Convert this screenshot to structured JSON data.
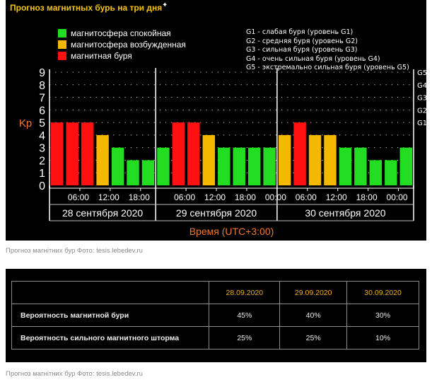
{
  "panel": {
    "title": "Прогноз магнитных бурь на три дня",
    "legend": [
      {
        "label": "магнитосфера спокойная",
        "color": "#22dd22"
      },
      {
        "label": "магнитосфера возбужденная",
        "color": "#f5b800"
      },
      {
        "label": "магнитная буря",
        "color": "#ff1111"
      }
    ],
    "g_legend": [
      "G1 - слабая буря (уровень G1)",
      "G2 - средняя буря (уровень G2)",
      "G3 - сильная буря (уровень G3)",
      "G4 - очень сильная буря (уровень G4)",
      "G5 - экстремально сильная буря (уровень G5)"
    ]
  },
  "chart_data": {
    "type": "bar",
    "ylabel": "Kp",
    "xlabel": "Время (UTC+3:00)",
    "ylim": [
      0,
      9
    ],
    "yticks": [
      "0",
      "1",
      "2",
      "3",
      "4",
      "5",
      "6",
      "7",
      "8",
      "9"
    ],
    "right_ticks": [
      {
        "label": "G1",
        "value": 5
      },
      {
        "label": "G2",
        "value": 6
      },
      {
        "label": "G3",
        "value": 7
      },
      {
        "label": "G4",
        "value": 8
      },
      {
        "label": "G5",
        "value": 9
      }
    ],
    "time_ticks": [
      "06:00",
      "12:00",
      "18:00",
      "00:00"
    ],
    "days": [
      "28 сентября 2020",
      "29 сентября 2020",
      "30 сентября 2020"
    ],
    "series": [
      {
        "day": "28 сентября 2020",
        "values": [
          5,
          5,
          5,
          4,
          3,
          2,
          2
        ]
      },
      {
        "day": "29 сентября 2020",
        "values": [
          3,
          5,
          5,
          4,
          3,
          3,
          3,
          3
        ]
      },
      {
        "day": "30 сентября 2020",
        "values": [
          4,
          5,
          4,
          4,
          3,
          3,
          2,
          2,
          3
        ]
      }
    ],
    "colors": {
      "quiet": "#22dd22",
      "active": "#f5b800",
      "storm": "#ff1111"
    },
    "grid": true
  },
  "captions": {
    "chart": "Прогноз магнітних бур Фото: tesis.lebedev.ru",
    "table": "Прогноз магнітних бур Фото: tesis.lebedev.ru"
  },
  "table": {
    "headers": [
      "",
      "28.09.2020",
      "29.09.2020",
      "30.09.2020"
    ],
    "rows": [
      {
        "label": "Вероятность магнитной бури",
        "values": [
          "45%",
          "40%",
          "30%"
        ]
      },
      {
        "label": "Вероятность сильного магнитного шторма",
        "values": [
          "25%",
          "25%",
          "10%"
        ]
      }
    ]
  }
}
